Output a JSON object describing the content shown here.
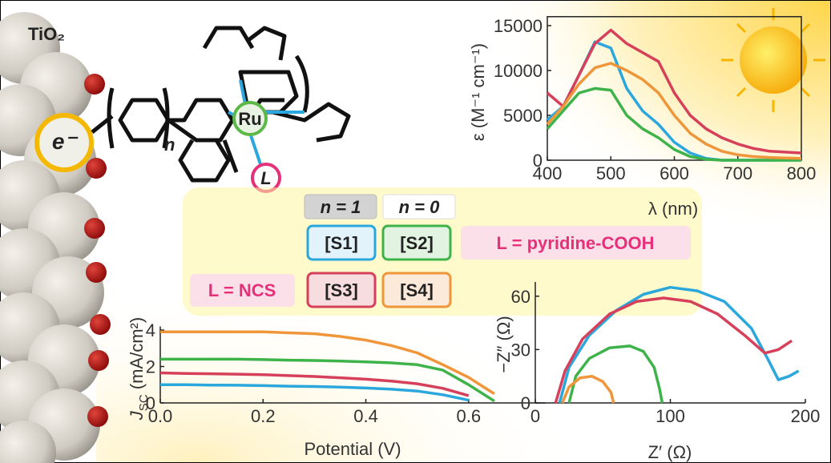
{
  "chart_data": [
    {
      "type": "line",
      "xlabel": "λ (nm)",
      "ylabel": "ε (M⁻¹ cm⁻¹)",
      "x": [
        400,
        425,
        450,
        475,
        500,
        525,
        550,
        575,
        600,
        625,
        650,
        675,
        700,
        725,
        750,
        775,
        800
      ],
      "series": [
        {
          "color": "#2aa7dc",
          "values": [
            4500,
            6000,
            9500,
            13200,
            12500,
            8000,
            5500,
            4000,
            2000,
            800,
            200,
            0,
            0,
            0,
            0,
            0,
            0
          ]
        },
        {
          "color": "#3db34a",
          "values": [
            3500,
            5500,
            7500,
            8000,
            7800,
            5000,
            3500,
            2500,
            1200,
            400,
            100,
            0,
            0,
            0,
            0,
            0,
            0
          ]
        },
        {
          "color": "#d6405b",
          "values": [
            7500,
            6000,
            9500,
            13000,
            14500,
            13000,
            12000,
            11000,
            7500,
            5000,
            3500,
            2500,
            1800,
            1300,
            1000,
            900,
            800
          ]
        },
        {
          "color": "#f0963a",
          "values": [
            4000,
            6000,
            8500,
            10300,
            10800,
            10000,
            9000,
            7500,
            5000,
            3000,
            1800,
            1000,
            600,
            400,
            300,
            250,
            200
          ]
        }
      ],
      "xlim": [
        400,
        800
      ],
      "xticks": [
        400,
        500,
        600,
        700,
        800
      ],
      "ylim": [
        0,
        16000
      ],
      "yticks": [
        0,
        5000,
        10000,
        15000
      ]
    },
    {
      "type": "line",
      "xlabel": "Potential (V)",
      "ylabel_main": "J",
      "ylabel_sub": "SC",
      "ylabel_unit": " (mA/cm²)",
      "x": [
        0,
        0.05,
        0.1,
        0.15,
        0.2,
        0.25,
        0.3,
        0.35,
        0.4,
        0.45,
        0.5,
        0.55,
        0.6,
        0.65,
        0.7
      ],
      "series": [
        {
          "color": "#f0963a",
          "values": [
            3.9,
            3.9,
            3.9,
            3.9,
            3.9,
            3.85,
            3.8,
            3.65,
            3.45,
            3.15,
            2.75,
            2.1,
            1.4,
            0.5,
            null
          ]
        },
        {
          "color": "#3db34a",
          "values": [
            2.4,
            2.4,
            2.4,
            2.4,
            2.38,
            2.35,
            2.33,
            2.3,
            2.25,
            2.2,
            2.1,
            1.8,
            1.0,
            0.1,
            null
          ]
        },
        {
          "color": "#d6405b",
          "values": [
            1.65,
            1.62,
            1.6,
            1.58,
            1.55,
            1.5,
            1.45,
            1.38,
            1.3,
            1.2,
            1.05,
            0.8,
            0.4,
            null,
            null
          ]
        },
        {
          "color": "#2aa7dc",
          "values": [
            1.0,
            1.0,
            0.98,
            0.97,
            0.95,
            0.92,
            0.9,
            0.87,
            0.82,
            0.75,
            0.65,
            0.45,
            0.15,
            null,
            null
          ]
        }
      ],
      "xlim": [
        0,
        0.75
      ],
      "xticks": [
        {
          "value": 0,
          "label": "0.0"
        },
        0.2,
        0.4,
        0.6
      ],
      "ylim": [
        0,
        4.2
      ],
      "yticks": [
        0,
        2,
        4
      ]
    },
    {
      "type": "line",
      "xlabel": "Z′ (Ω)",
      "ylabel": "−Z″ (Ω)",
      "series": [
        {
          "color": "#2aa7dc",
          "x": [
            18,
            25,
            40,
            60,
            80,
            100,
            120,
            140,
            160,
            172,
            180,
            188,
            195
          ],
          "values": [
            0,
            20,
            38,
            52,
            61,
            65,
            63,
            57,
            42,
            25,
            13,
            15,
            18
          ]
        },
        {
          "color": "#d6405b",
          "x": [
            15,
            22,
            35,
            55,
            75,
            95,
            115,
            135,
            155,
            170,
            180,
            190
          ],
          "values": [
            0,
            18,
            36,
            50,
            57,
            59,
            57,
            50,
            38,
            28,
            30,
            35
          ]
        },
        {
          "color": "#3db34a",
          "x": [
            25,
            30,
            40,
            55,
            70,
            80,
            88,
            92,
            94
          ],
          "values": [
            0,
            15,
            25,
            31,
            32,
            29,
            20,
            8,
            0
          ]
        },
        {
          "color": "#f0963a",
          "x": [
            20,
            25,
            33,
            42,
            50,
            56,
            58
          ],
          "values": [
            0,
            9,
            14,
            15,
            12,
            6,
            0
          ]
        }
      ],
      "xlim": [
        0,
        200
      ],
      "xticks": [
        0,
        100,
        200
      ],
      "ylim": [
        0,
        68
      ],
      "yticks": [
        0,
        30,
        60
      ]
    }
  ],
  "scheme": {
    "surface": "TiO₂",
    "electron": "e⁻",
    "metal": "Ru",
    "ligand": "L",
    "repeat": "n",
    "n1": "n = 1",
    "n0": "n = 0",
    "s1": "[S1]",
    "s2": "[S2]",
    "s3": "[S3]",
    "s4": "[S4]",
    "l_cooh": "L = pyridine-COOH",
    "l_ncs": "L = NCS"
  }
}
